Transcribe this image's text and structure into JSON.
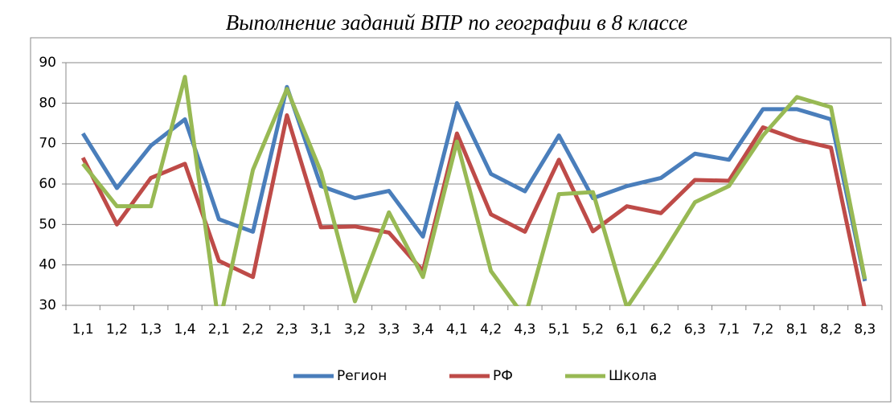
{
  "chart_data": {
    "type": "line",
    "title": "Выполнение заданий ВПР по географии в 8 классе",
    "categories": [
      "1,1",
      "1,2",
      "1,3",
      "1,4",
      "2,1",
      "2,2",
      "2,3",
      "3,1",
      "3,2",
      "3,3",
      "3,4",
      "4,1",
      "4,2",
      "4,3",
      "5,1",
      "5,2",
      "6,1",
      "6,2",
      "6,3",
      "7,1",
      "7,2",
      "8,1",
      "8,2",
      "8,3"
    ],
    "series": [
      {
        "name": "Регион",
        "color": "#4a7ebb",
        "values": [
          72.5,
          59,
          69.5,
          76,
          51.3,
          48.2,
          84,
          59.5,
          56.5,
          58.3,
          47,
          80,
          62.5,
          58.2,
          72,
          56.5,
          59.5,
          61.5,
          67.5,
          66,
          78.5,
          78.5,
          76,
          36
        ]
      },
      {
        "name": "РФ",
        "color": "#be4b48",
        "values": [
          66.5,
          50,
          61.5,
          65,
          41,
          37,
          77,
          49.3,
          49.5,
          48,
          38.5,
          72.5,
          52.5,
          48.2,
          66,
          48.3,
          54.5,
          52.8,
          61,
          60.8,
          74,
          71,
          69,
          29
        ]
      },
      {
        "name": "Школа",
        "color": "#98b954",
        "values": [
          65,
          54.5,
          54.5,
          86.5,
          25,
          63.5,
          83.5,
          63,
          31,
          53,
          37,
          70.5,
          38.5,
          27,
          57.5,
          58,
          29.5,
          42,
          55.5,
          59.5,
          72,
          81.5,
          79,
          36.5
        ]
      }
    ],
    "ylim": [
      30,
      90
    ],
    "yticks": [
      30,
      40,
      50,
      60,
      70,
      80,
      90
    ],
    "grid": true,
    "legend": "bottom"
  }
}
